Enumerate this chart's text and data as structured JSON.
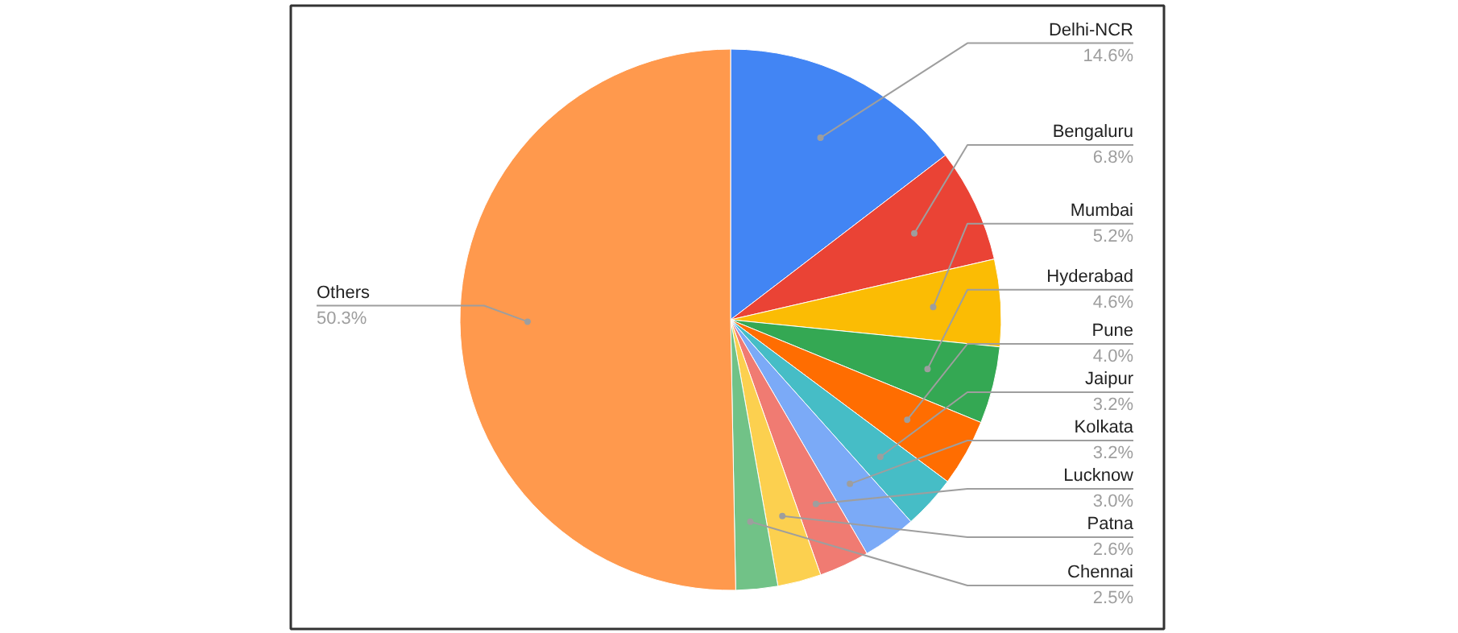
{
  "chart_data": {
    "type": "pie",
    "categories": [
      "Delhi-NCR",
      "Bengaluru",
      "Mumbai",
      "Hyderabad",
      "Pune",
      "Jaipur",
      "Kolkata",
      "Lucknow",
      "Patna",
      "Chennai",
      "Others"
    ],
    "values": [
      14.6,
      6.8,
      5.2,
      4.6,
      4.0,
      3.2,
      3.2,
      3.0,
      2.6,
      2.5,
      50.3
    ],
    "value_labels": [
      "14.6%",
      "6.8%",
      "5.2%",
      "4.6%",
      "4.0%",
      "3.2%",
      "3.2%",
      "3.0%",
      "2.6%",
      "2.5%",
      "50.3%"
    ],
    "colors": [
      "#4285f4",
      "#ea4335",
      "#fbbc04",
      "#34a853",
      "#ff6d01",
      "#46bdc6",
      "#7baaf7",
      "#f07b72",
      "#fcd04f",
      "#71c287",
      "#ff994d"
    ]
  }
}
